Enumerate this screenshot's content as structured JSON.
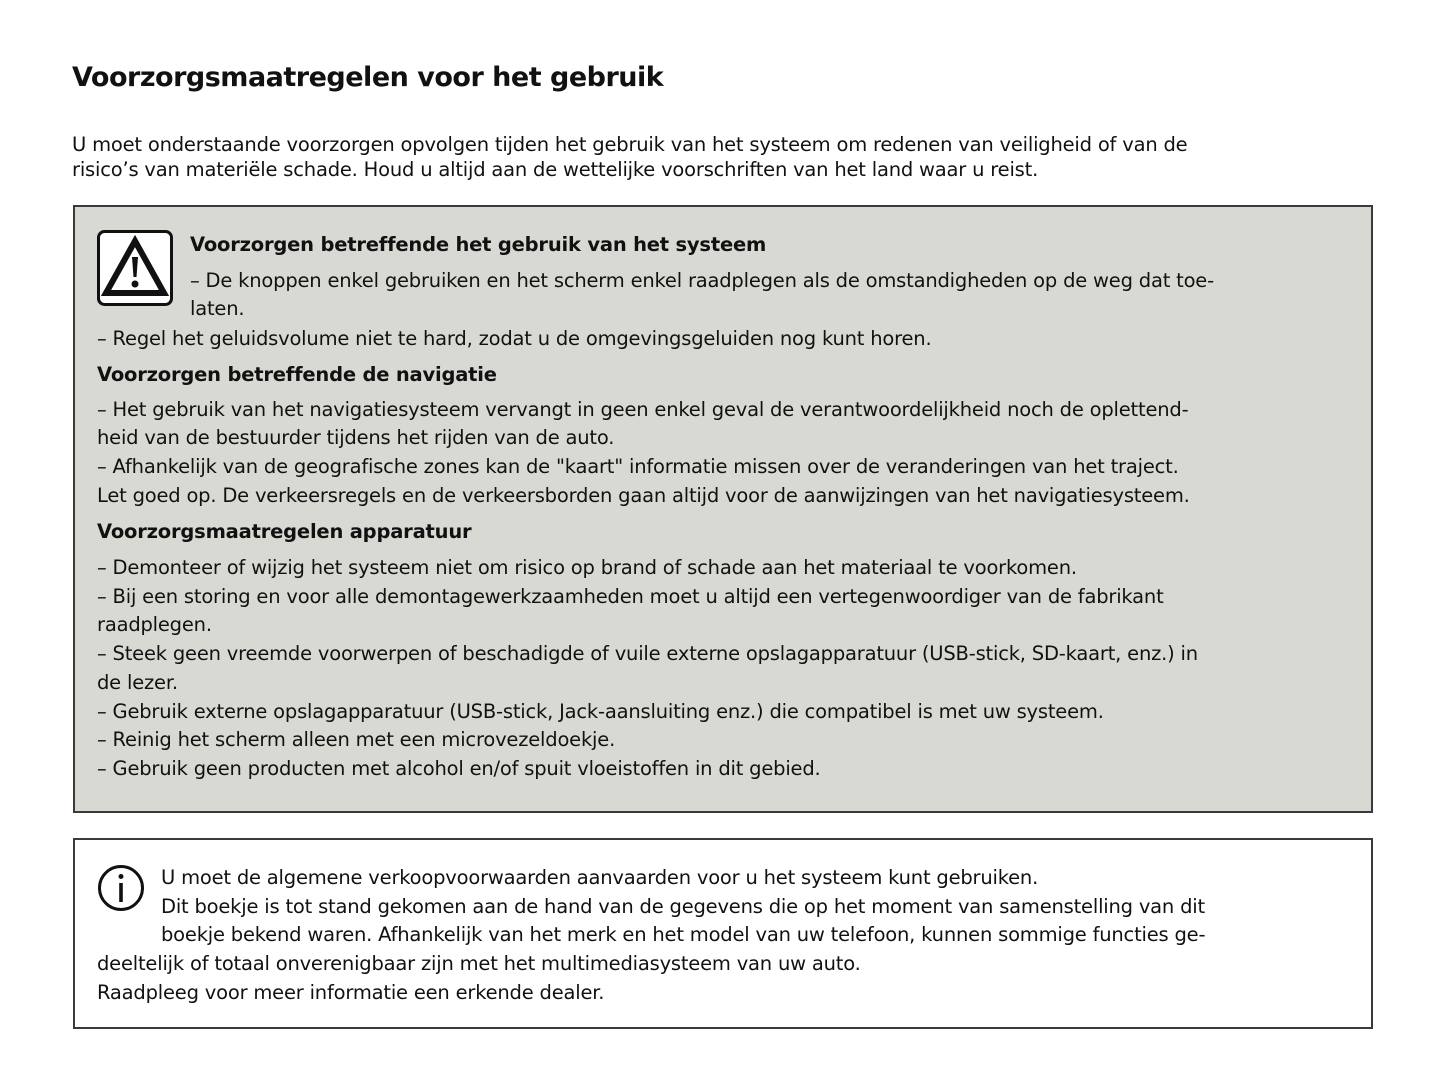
{
  "title": "Voorzorgsmaatregelen voor het gebruik",
  "intro": [
    "U moet onderstaande voorzorgen opvolgen tijden het gebruik van het systeem om redenen van veiligheid of van de",
    "risico’s van materiële schade. Houd u altijd aan de wettelijke voorschriften van het land waar u reist."
  ],
  "warning_box": {
    "icon": "warning-triangle-icon",
    "background": "#d9d9d3",
    "sections": [
      {
        "heading": "Voorzorgen betreffende het gebruik van het systeem",
        "lines": [
          "–  De knoppen enkel gebruiken en het scherm enkel raadplegen als de omstandigheden op de weg dat toe-",
          "laten.",
          "–  Regel het geluidsvolume niet te hard, zodat u de omgevingsgeluiden nog kunt horen."
        ]
      },
      {
        "heading": "Voorzorgen betreffende de navigatie",
        "lines": [
          "–  Het gebruik van het navigatiesysteem vervangt in geen enkel geval de verantwoordelijkheid noch de oplettend-",
          "heid van de bestuurder tijdens het rijden van de auto.",
          "–  Afhankelijk van de geografische zones kan de \"kaart\" informatie missen over de veranderingen van het traject.",
          "Let goed op. De verkeersregels en de verkeersborden gaan altijd voor de aanwijzingen van het navigatiesysteem."
        ]
      },
      {
        "heading": "Voorzorgsmaatregelen apparatuur",
        "lines": [
          "–  Demonteer of wijzig het systeem niet om risico op brand of schade aan het materiaal te voorkomen.",
          "–  Bij een storing en voor alle demontagewerkzaamheden moet u altijd een vertegenwoordiger van de fabrikant",
          "raadplegen.",
          "–  Steek geen vreemde voorwerpen of beschadigde of vuile externe opslagapparatuur (USB-stick, SD-kaart, enz.) in",
          "de lezer.",
          "–  Gebruik externe opslagapparatuur (USB-stick, Jack-aansluiting enz.) die compatibel is met uw systeem.",
          "–  Reinig het scherm alleen met een microvezeldoekje.",
          "–  Gebruik geen producten met alcohol en/of spuit vloeistoffen in dit gebied."
        ]
      }
    ]
  },
  "info_box": {
    "icon": "info-circle-icon",
    "lines": [
      "U moet de algemene verkoopvoorwaarden aanvaarden voor u het systeem kunt gebruiken.",
      "Dit boekje is tot stand gekomen aan de hand van de gegevens die op het moment van samenstelling van dit",
      "boekje bekend waren. Afhankelijk van het merk en het model van uw telefoon, kunnen sommige functies ge-",
      "deeltelijk of totaal onverenigbaar zijn met het multimediasysteem van uw auto.",
      "Raadpleeg voor meer informatie een erkende dealer."
    ]
  }
}
